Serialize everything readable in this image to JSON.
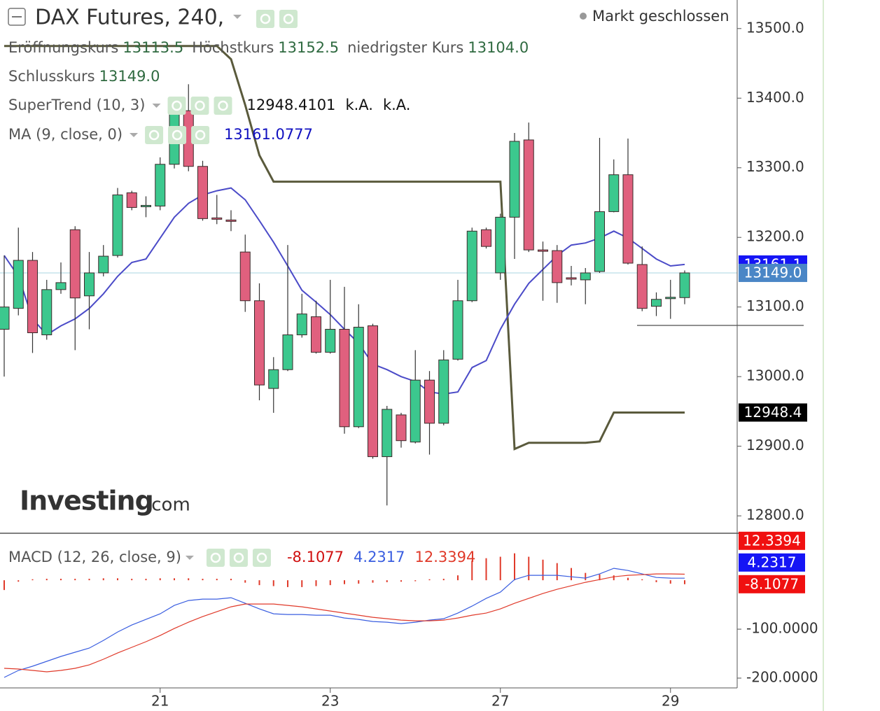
{
  "chart_data": [
    {
      "type": "candlestick",
      "title": "DAX Futures, 240,",
      "status": "Markt geschlossen",
      "last_names": [
        "Eröffnungskurs",
        "Höchstkurs",
        "niedrigster Kurs",
        "Schlusskurs"
      ],
      "last_labels": [
        "13113.5",
        "13152.5",
        "13104.0",
        "13149.0"
      ],
      "watermark": [
        "Investing",
        ".com"
      ],
      "up_color": "#3cc88e",
      "down_color": "#e0607e",
      "categories": [
        null,
        null,
        null,
        null,
        null,
        null,
        null,
        null,
        null,
        null,
        null,
        "21",
        null,
        null,
        null,
        null,
        null,
        null,
        null,
        null,
        null,
        null,
        null,
        "23",
        null,
        null,
        null,
        null,
        null,
        null,
        null,
        null,
        null,
        null,
        null,
        "27",
        null,
        null,
        null,
        null,
        null,
        null,
        null,
        null,
        null,
        null,
        null,
        "29",
        null
      ],
      "open": [
        13068,
        13098,
        13167,
        13060,
        13125,
        13211,
        13116,
        13149,
        13174,
        13264,
        13244,
        13245,
        13305,
        13382,
        13302,
        13228,
        13225,
        13179,
        13109,
        12983,
        13010,
        13060,
        13086,
        13035,
        13068,
        12928,
        13073,
        12885,
        12945,
        12906,
        12995,
        12933,
        13025,
        13109,
        13211,
        13149,
        13229,
        13340,
        13182,
        13181,
        13142,
        13139,
        13151,
        13237,
        13290,
        13161,
        13101,
        13112,
        13113.5
      ],
      "high": [
        13174,
        13214,
        13179,
        13139,
        13164,
        13216,
        13179,
        13189,
        13271,
        13267,
        13259,
        13315,
        13400,
        13420,
        13310,
        13261,
        13239,
        13204,
        13134,
        13028,
        13189,
        13119,
        13109,
        13139,
        13129,
        13104,
        13076,
        12958,
        12948,
        13038,
        13008,
        13038,
        13139,
        13214,
        13214,
        13234,
        13350,
        13365,
        13194,
        13189,
        13159,
        13156,
        13343,
        13312,
        13342,
        13187,
        13121,
        13139,
        13152.5
      ],
      "low": [
        13000,
        13088,
        13034,
        13053,
        13119,
        13038,
        13068,
        13144,
        13171,
        13239,
        13229,
        13239,
        13299,
        13295,
        13224,
        13219,
        13209,
        13093,
        12966,
        12948,
        13008,
        13056,
        13033,
        13033,
        12918,
        12926,
        12882,
        12815,
        12898,
        12904,
        12888,
        12930,
        13023,
        13107,
        13184,
        13139,
        13169,
        13179,
        13109,
        13106,
        13131,
        13104,
        13149,
        13236,
        13161,
        13094,
        13087,
        13083,
        13104.0
      ],
      "close": [
        13100,
        13167,
        13063,
        13125,
        13135,
        13113,
        13149,
        13173,
        13261,
        13243,
        13246,
        13305,
        13382,
        13302,
        13227,
        13227,
        13223,
        13109,
        12988,
        13010,
        13060,
        13090,
        13035,
        13068,
        12928,
        13071,
        12885,
        12953,
        12908,
        12995,
        12933,
        13024,
        13109,
        13209,
        13187,
        13229,
        13338,
        13182,
        13180,
        13135,
        13140,
        13149,
        13237,
        13290,
        13163,
        13098,
        13111,
        13114,
        13149.0
      ],
      "indicators": [
        {
          "name": "SuperTrend (10, 3)",
          "color": "#5a5a3c",
          "axis_label": "12948.4",
          "legend_extra": [
            "k.A.",
            "k.A."
          ],
          "values": [
            13475,
            13475,
            13475,
            13475,
            13475,
            13475,
            13475,
            13475,
            13475,
            13475,
            13475,
            13475,
            13475,
            13475,
            13475,
            13475,
            13456,
            13390,
            13318,
            13280,
            13280,
            13280,
            13280,
            13280,
            13280,
            13280,
            13280,
            13280,
            13280,
            13280,
            13280,
            13280,
            13280,
            13280,
            13280,
            13280,
            12896,
            12905,
            12905,
            12905,
            12905,
            12905,
            12907,
            12948.4,
            12948.4,
            12948.4,
            12948.4,
            12948.4,
            12948.4101
          ]
        },
        {
          "name": "MA (9, close, 0)",
          "color": "#4b4bc8",
          "axis_label": "13161.1",
          "values": [
            13174,
            13144,
            13083,
            13060,
            13073,
            13083,
            13098,
            13119,
            13144,
            13164,
            13169,
            13199,
            13229,
            13249,
            13261,
            13267,
            13271,
            13254,
            13224,
            13193,
            13159,
            13124,
            13107,
            13089,
            13068,
            13048,
            13018,
            13010,
            13000,
            12993,
            12978,
            12975,
            12978,
            13013,
            13023,
            13068,
            13104,
            13134,
            13154,
            13174,
            13189,
            13192,
            13199,
            13209,
            13199,
            13184,
            13169,
            13159,
            13161.0777
          ]
        }
      ],
      "ylim": [
        12775,
        13541
      ],
      "yticks": [
        {
          "value": 12800,
          "label": "12800.0"
        },
        {
          "value": 12900,
          "label": "12900.0"
        },
        {
          "value": 13000,
          "label": "13000.0"
        },
        {
          "value": 13100,
          "label": "13100.0"
        },
        {
          "value": 13200,
          "label": "13200.0"
        },
        {
          "value": 13300,
          "label": "13300.0"
        },
        {
          "value": 13400,
          "label": "13400.0"
        },
        {
          "value": 13500,
          "label": "13500.0"
        }
      ]
    },
    {
      "type": "macd",
      "title": "MACD (12, 26, close, 9)",
      "series": [
        {
          "style": "bars",
          "color": "#e03a2a",
          "values": [
            -20,
            -3,
            2,
            3,
            3,
            3,
            3,
            4,
            4,
            3,
            3,
            4,
            4,
            4,
            3,
            3,
            3,
            -5,
            -10,
            -12,
            -14,
            -14,
            -12,
            -10,
            -8,
            -7,
            -5,
            -4,
            -3,
            -2,
            2,
            3,
            10,
            40,
            45,
            48,
            55,
            48,
            42,
            35,
            25,
            15,
            12,
            10,
            5,
            2,
            -4,
            -7,
            -8.1077
          ]
        },
        {
          "style": "line",
          "color": "#3a5ee0",
          "values": [
            -198.6,
            -184.3,
            -175.7,
            -165.7,
            -155.7,
            -147.1,
            -138.6,
            -122.9,
            -105.7,
            -91.4,
            -80,
            -68.6,
            -51.4,
            -41.4,
            -38.6,
            -38.6,
            -35.7,
            -47.1,
            -58.6,
            -68.6,
            -70,
            -70,
            -71.4,
            -71.4,
            -77.1,
            -80,
            -84.3,
            -85.7,
            -88.6,
            -85.7,
            -81.4,
            -78.6,
            -67.1,
            -52.9,
            -37.1,
            -24.3,
            1.4,
            10,
            10,
            10,
            7.1,
            4.3,
            12.9,
            24.3,
            20,
            12.9,
            5.7,
            4.3,
            4.2317
          ]
        },
        {
          "style": "line",
          "color": "#e03a2a",
          "values": [
            -180,
            -181.4,
            -184.3,
            -187.1,
            -184.3,
            -180,
            -172.9,
            -161.4,
            -148.6,
            -137.1,
            -125.7,
            -112.9,
            -98.6,
            -85.7,
            -74.3,
            -64.3,
            -54.3,
            -48.6,
            -48.6,
            -48.6,
            -51.4,
            -54.3,
            -58.6,
            -62.9,
            -67.1,
            -71.4,
            -75.7,
            -78.6,
            -81.4,
            -82.9,
            -82.9,
            -81.4,
            -77.1,
            -71.4,
            -67.1,
            -58.6,
            -47.1,
            -37.1,
            -27.1,
            -18.6,
            -11.4,
            -4.3,
            1.4,
            7.1,
            10,
            11.4,
            12.9,
            12.9,
            12.3394
          ]
        }
      ],
      "ylim": [
        -220,
        96
      ],
      "yticks": [
        {
          "value": -100,
          "label": "-100.0000"
        },
        {
          "value": -200,
          "label": "-200.0000"
        }
      ]
    }
  ]
}
